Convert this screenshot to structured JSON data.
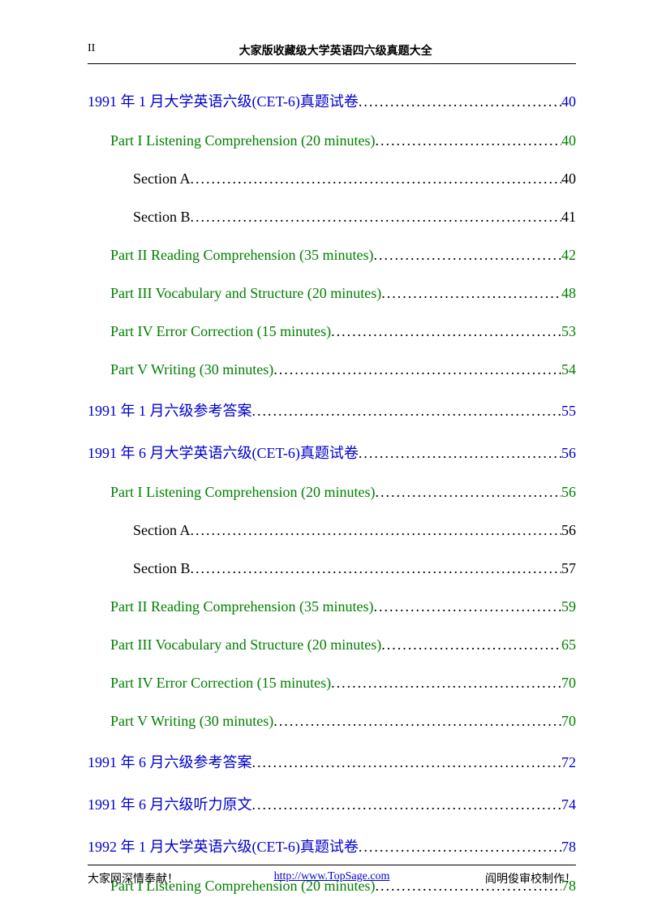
{
  "header": {
    "page_num": "II",
    "title": "大家版收藏级大学英语四六级真题大全"
  },
  "toc": [
    {
      "level": 0,
      "label": "1991 年 1 月大学英语六级(CET-6)真题试卷",
      "page": "40",
      "label_color": "c-blue",
      "page_color": "p-blue"
    },
    {
      "level": 1,
      "label": "Part I Listening Comprehension (20 minutes)",
      "page": "40",
      "label_color": "c-green",
      "page_color": "p-green"
    },
    {
      "level": 2,
      "label": "Section A",
      "page": "40",
      "label_color": "c-black",
      "page_color": "p-black"
    },
    {
      "level": 2,
      "label": "Section B",
      "page": "41",
      "label_color": "c-black",
      "page_color": "p-black"
    },
    {
      "level": 1,
      "label": "Part II Reading Comprehension (35 minutes)",
      "page": "42",
      "label_color": "c-green",
      "page_color": "p-green"
    },
    {
      "level": 1,
      "label": "Part III Vocabulary and Structure (20 minutes)",
      "page": "48",
      "label_color": "c-green",
      "page_color": "p-green"
    },
    {
      "level": 1,
      "label": "Part IV Error Correction (15 minutes)",
      "page": "53",
      "label_color": "c-green",
      "page_color": "p-green"
    },
    {
      "level": 1,
      "label": "Part V Writing (30 minutes)",
      "page": "54",
      "label_color": "c-green",
      "page_color": "p-green"
    },
    {
      "level": 0,
      "label": "1991 年 1 月六级参考答案",
      "page": "55",
      "label_color": "c-blue",
      "page_color": "p-blue"
    },
    {
      "level": 0,
      "label": "1991 年 6 月大学英语六级(CET-6)真题试卷",
      "page": "56",
      "label_color": "c-blue",
      "page_color": "p-blue"
    },
    {
      "level": 1,
      "label": "Part I Listening Comprehension (20 minutes)",
      "page": "56",
      "label_color": "c-green",
      "page_color": "p-green"
    },
    {
      "level": 2,
      "label": "Section A",
      "page": "56",
      "label_color": "c-black",
      "page_color": "p-black"
    },
    {
      "level": 2,
      "label": "Section B",
      "page": "57",
      "label_color": "c-black",
      "page_color": "p-black"
    },
    {
      "level": 1,
      "label": "Part II Reading Comprehension (35 minutes)",
      "page": "59",
      "label_color": "c-green",
      "page_color": "p-green"
    },
    {
      "level": 1,
      "label": "Part III Vocabulary and Structure (20 minutes)",
      "page": "65",
      "label_color": "c-green",
      "page_color": "p-green"
    },
    {
      "level": 1,
      "label": "Part IV Error Correction (15 minutes)",
      "page": "70",
      "label_color": "c-green",
      "page_color": "p-green"
    },
    {
      "level": 1,
      "label": "Part V Writing (30 minutes)",
      "page": "70",
      "label_color": "c-green",
      "page_color": "p-green"
    },
    {
      "level": 0,
      "label": "1991 年 6 月六级参考答案",
      "page": "72",
      "label_color": "c-blue",
      "page_color": "p-blue"
    },
    {
      "level": 0,
      "label": "1991 年 6 月六级听力原文",
      "page": "74",
      "label_color": "c-blue",
      "page_color": "p-blue"
    },
    {
      "level": 0,
      "label": "1992 年 1 月大学英语六级(CET-6)真题试卷",
      "page": "78",
      "label_color": "c-blue",
      "page_color": "p-blue"
    },
    {
      "level": 1,
      "label": "Part I Listening Comprehension (20 minutes)",
      "page": "78",
      "label_color": "c-green",
      "page_color": "p-green"
    }
  ],
  "footer": {
    "left": "大家网深情奉献！",
    "link": "http://www.TopSage.com",
    "right": "阎明俊审校制作！"
  }
}
